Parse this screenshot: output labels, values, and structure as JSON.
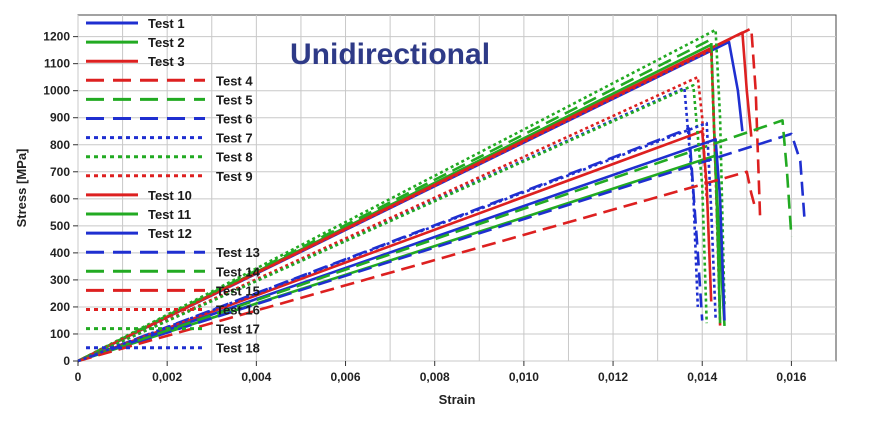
{
  "chart_data": {
    "type": "line",
    "title": "Unidirectional",
    "xlabel": "Strain",
    "ylabel": "Stress [MPa]",
    "xlim": [
      0,
      0.017
    ],
    "ylim": [
      0,
      1280
    ],
    "xticks": [
      0,
      0.002,
      0.004,
      0.006,
      0.008,
      0.01,
      0.012,
      0.014,
      0.016
    ],
    "xtick_labels": [
      "0",
      "0,002",
      "0,004",
      "0,006",
      "0,008",
      "0,010",
      "0,012",
      "0,014",
      "0,016"
    ],
    "yticks": [
      0,
      100,
      200,
      300,
      400,
      500,
      600,
      700,
      800,
      900,
      1000,
      1100,
      1200
    ],
    "ytick_labels": [
      "0",
      "100",
      "200",
      "300",
      "400",
      "500",
      "600",
      "700",
      "800",
      "900",
      "1000",
      "1100",
      "1200"
    ],
    "grid": true,
    "legend_position": "left-inside",
    "series": [
      {
        "name": "Test 1",
        "color": "#1f2fd0",
        "style": "solid",
        "x": [
          0,
          0.0146,
          0.0148,
          0.0149
        ],
        "y": [
          0,
          1180,
          1000,
          850
        ]
      },
      {
        "name": "Test 2",
        "color": "#22aa22",
        "style": "solid",
        "x": [
          0,
          0.0142,
          0.0143,
          0.0145
        ],
        "y": [
          0,
          1170,
          700,
          130
        ]
      },
      {
        "name": "Test 3",
        "color": "#dd2020",
        "style": "solid",
        "x": [
          0,
          0.0149,
          0.015,
          0.0151
        ],
        "y": [
          0,
          1215,
          1000,
          830
        ]
      },
      {
        "name": "Test 4",
        "color": "#dd2020",
        "style": "dashed",
        "x": [
          0,
          0.0151,
          0.0152,
          0.0153
        ],
        "y": [
          0,
          1230,
          1000,
          520
        ]
      },
      {
        "name": "Test 5",
        "color": "#22aa22",
        "style": "dashed",
        "x": [
          0,
          0.0142,
          0.0143,
          0.0144
        ],
        "y": [
          0,
          1190,
          700,
          170
        ]
      },
      {
        "name": "Test 6",
        "color": "#1f2fd0",
        "style": "dashed",
        "x": [
          0,
          0.0137,
          0.0139,
          0.014
        ],
        "y": [
          0,
          860,
          400,
          150
        ]
      },
      {
        "name": "Test 7",
        "color": "#1f2fd0",
        "style": "dotted",
        "x": [
          0,
          0.0136,
          0.0138,
          0.0139
        ],
        "y": [
          0,
          1010,
          620,
          200
        ]
      },
      {
        "name": "Test 8",
        "color": "#22aa22",
        "style": "dotted",
        "x": [
          0,
          0.0143,
          0.0144,
          0.0145
        ],
        "y": [
          0,
          1225,
          900,
          200
        ]
      },
      {
        "name": "Test 9",
        "color": "#dd2020",
        "style": "dotted",
        "x": [
          0,
          0.0142,
          0.0143,
          0.0144
        ],
        "y": [
          0,
          1150,
          700,
          130
        ]
      },
      {
        "name": "Test 10",
        "color": "#dd2020",
        "style": "solid",
        "x": [
          0,
          0.014,
          0.0141,
          0.0142
        ],
        "y": [
          0,
          850,
          650,
          220
        ]
      },
      {
        "name": "Test 11",
        "color": "#22aa22",
        "style": "solid",
        "x": [
          0,
          0.0143,
          0.0144
        ],
        "y": [
          0,
          760,
          140
        ]
      },
      {
        "name": "Test 12",
        "color": "#1f2fd0",
        "style": "solid",
        "x": [
          0,
          0.0143,
          0.0144,
          0.0145
        ],
        "y": [
          0,
          820,
          600,
          150
        ]
      },
      {
        "name": "Test 13",
        "color": "#1f2fd0",
        "style": "dashed",
        "x": [
          0,
          0.016,
          0.0162,
          0.0163
        ],
        "y": [
          0,
          840,
          740,
          510
        ]
      },
      {
        "name": "Test 14",
        "color": "#22aa22",
        "style": "dashed",
        "x": [
          0,
          0.0158,
          0.0159,
          0.016
        ],
        "y": [
          0,
          890,
          700,
          460
        ]
      },
      {
        "name": "Test 15",
        "color": "#dd2020",
        "style": "dashed",
        "x": [
          0,
          0.015,
          0.0151,
          0.0152
        ],
        "y": [
          0,
          700,
          620,
          560
        ]
      },
      {
        "name": "Test 16",
        "color": "#dd2020",
        "style": "dotted",
        "x": [
          0,
          0.0139,
          0.014,
          0.0141
        ],
        "y": [
          0,
          1050,
          900,
          600
        ]
      },
      {
        "name": "Test 17",
        "color": "#22aa22",
        "style": "dotted",
        "x": [
          0,
          0.0138,
          0.014,
          0.0141
        ],
        "y": [
          0,
          1020,
          650,
          140
        ]
      },
      {
        "name": "Test 18",
        "color": "#1f2fd0",
        "style": "dotted",
        "x": [
          0,
          0.0141,
          0.0142,
          0.0143
        ],
        "y": [
          0,
          880,
          560,
          160
        ]
      }
    ]
  }
}
